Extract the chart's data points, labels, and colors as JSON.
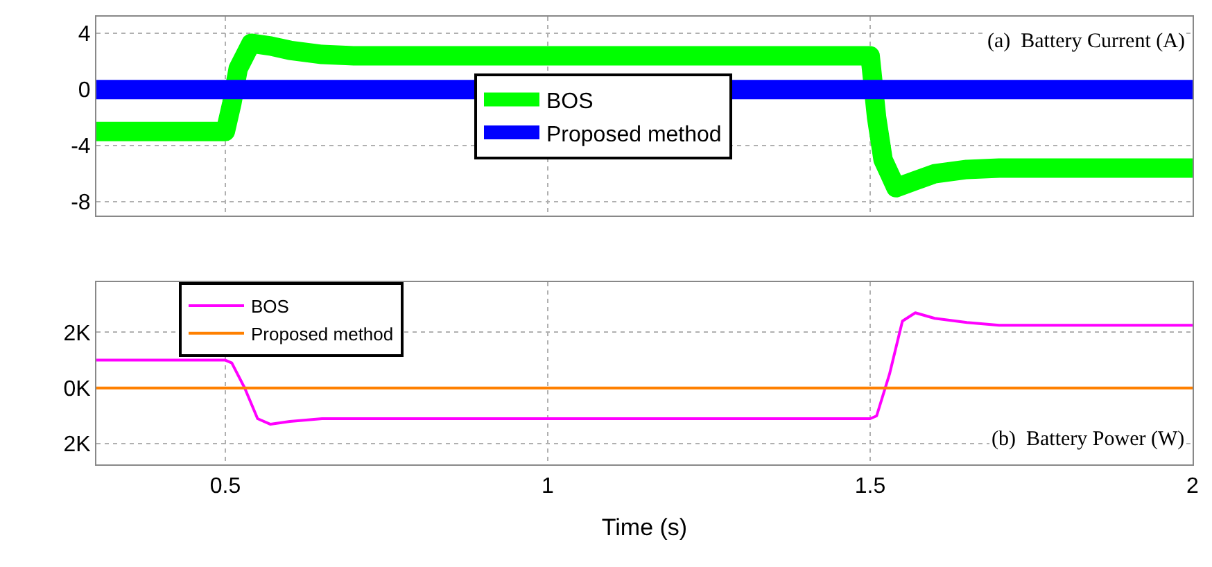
{
  "chart_data": [
    {
      "type": "line",
      "annotations": [
        "(a)  Battery Current (A)"
      ],
      "xlim": [
        0.3,
        2
      ],
      "xticks": [
        0.5,
        1,
        1.5,
        2
      ],
      "ylim": [
        -9,
        5.2
      ],
      "yticks": [
        4,
        0,
        -4,
        -8
      ],
      "grid": true,
      "legend": "center",
      "tick_labels": "y",
      "line_style": "solid",
      "series": [
        {
          "name": "BOS",
          "color": "#00ff00",
          "x": [
            0.3,
            0.5,
            0.51,
            0.52,
            0.54,
            0.57,
            0.6,
            0.65,
            0.7,
            1.0,
            1.5,
            1.51,
            1.52,
            1.54,
            1.57,
            1.6,
            1.65,
            1.7,
            2.0
          ],
          "values": [
            -3,
            -3,
            -1,
            1.5,
            3.3,
            3.1,
            2.8,
            2.5,
            2.4,
            2.4,
            2.4,
            -2,
            -5,
            -7,
            -6.5,
            -6,
            -5.7,
            -5.6,
            -5.6
          ]
        },
        {
          "name": "Proposed method",
          "color": "#0000ff",
          "x": [
            0.3,
            2.0
          ],
          "values": [
            0,
            0
          ]
        }
      ]
    },
    {
      "type": "line",
      "annotations": [
        "(b)  Battery Power (W)"
      ],
      "xlabel": "Time (s)",
      "xlim": [
        0.3,
        2
      ],
      "xticks": [
        0.5,
        1,
        1.5,
        2
      ],
      "ylim": [
        -2750,
        3800
      ],
      "yticks": [
        {
          "value": 2000,
          "label": "2K"
        },
        {
          "value": 0,
          "label": "0K"
        },
        {
          "value": -2000,
          "label": "2K"
        }
      ],
      "grid": true,
      "legend": "top left",
      "line_style": "solid",
      "series": [
        {
          "name": "BOS",
          "color": "#ff00ff",
          "x": [
            0.3,
            0.5,
            0.51,
            0.53,
            0.55,
            0.57,
            0.6,
            0.65,
            0.7,
            1.0,
            1.5,
            1.51,
            1.53,
            1.55,
            1.57,
            1.6,
            1.65,
            1.7,
            2.0
          ],
          "values": [
            1000,
            1000,
            900,
            0,
            -1100,
            -1300,
            -1200,
            -1100,
            -1100,
            -1100,
            -1100,
            -1000,
            500,
            2400,
            2700,
            2500,
            2350,
            2250,
            2250
          ]
        },
        {
          "name": "Proposed method",
          "color": "#ff8000",
          "x": [
            0.3,
            2.0
          ],
          "values": [
            0,
            0
          ]
        }
      ]
    }
  ]
}
